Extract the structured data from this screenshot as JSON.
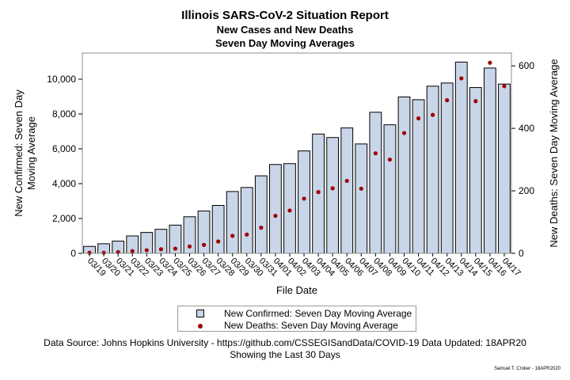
{
  "title": "Illinois SARS-CoV-2 Situation Report",
  "subtitle1": "New Cases and New Deaths",
  "subtitle2": "Seven Day Moving Averages",
  "legend": {
    "cases_label": "New Confirmed: Seven Day Moving Average",
    "deaths_label": "New Deaths: Seven Day Moving Average"
  },
  "footnote1": "Data Source: Johns Hopkins University - https://github.com/CSSEGISandData/COVID-19 Data Updated: 18APR20",
  "footnote2": "Showing the Last 30 Days",
  "signature": "Samuel T. Croker - 18APR2020",
  "colors": {
    "bar_fill": "#c9d5e8",
    "bar_stroke": "#000000",
    "marker": "#a00000",
    "frame": "#8c8c8c"
  },
  "chart_data": {
    "type": "bar",
    "xlabel": "File Date",
    "ylabel": "New Confirmed: Seven Day Moving Average",
    "y2label": "New Deaths: Seven Day Moving Average",
    "ylim": [
      0,
      11500
    ],
    "y2lim": [
      0,
      641
    ],
    "yticks": [
      0,
      2000,
      4000,
      6000,
      8000,
      10000
    ],
    "yticklabels": [
      "0",
      "2,000",
      "4,000",
      "6,000",
      "8,000",
      "10,000"
    ],
    "y2ticks": [
      0,
      200,
      400,
      600
    ],
    "y2ticklabels": [
      "0",
      "200",
      "400",
      "600"
    ],
    "grid": false,
    "legend_position": "bottom",
    "categories": [
      "03/19",
      "03/20",
      "03/21",
      "03/22",
      "03/23",
      "03/24",
      "03/25",
      "03/26",
      "03/27",
      "03/28",
      "03/29",
      "03/30",
      "03/31",
      "04/01",
      "04/02",
      "04/03",
      "04/04",
      "04/05",
      "04/06",
      "04/07",
      "04/08",
      "04/09",
      "04/10",
      "04/11",
      "04/12",
      "04/13",
      "04/14",
      "04/15",
      "04/16",
      "04/17"
    ],
    "series": [
      {
        "name": "New Confirmed: Seven Day Moving Average",
        "kind": "bar",
        "axis": "left",
        "values": [
          400,
          550,
          700,
          1000,
          1200,
          1380,
          1620,
          2100,
          2430,
          2750,
          3550,
          3780,
          4450,
          5100,
          5150,
          5880,
          6850,
          6650,
          7200,
          6280,
          8100,
          7380,
          8980,
          8820,
          9600,
          9780,
          10980,
          9520,
          10640,
          9720
        ]
      },
      {
        "name": "New Deaths: Seven Day Moving Average",
        "kind": "scatter",
        "axis": "right",
        "values": [
          2,
          2,
          4,
          7,
          10,
          13,
          15,
          22,
          27,
          38,
          56,
          60,
          82,
          120,
          137,
          175,
          196,
          208,
          232,
          207,
          320,
          300,
          385,
          432,
          443,
          490,
          560,
          487,
          610,
          535
        ]
      }
    ]
  }
}
